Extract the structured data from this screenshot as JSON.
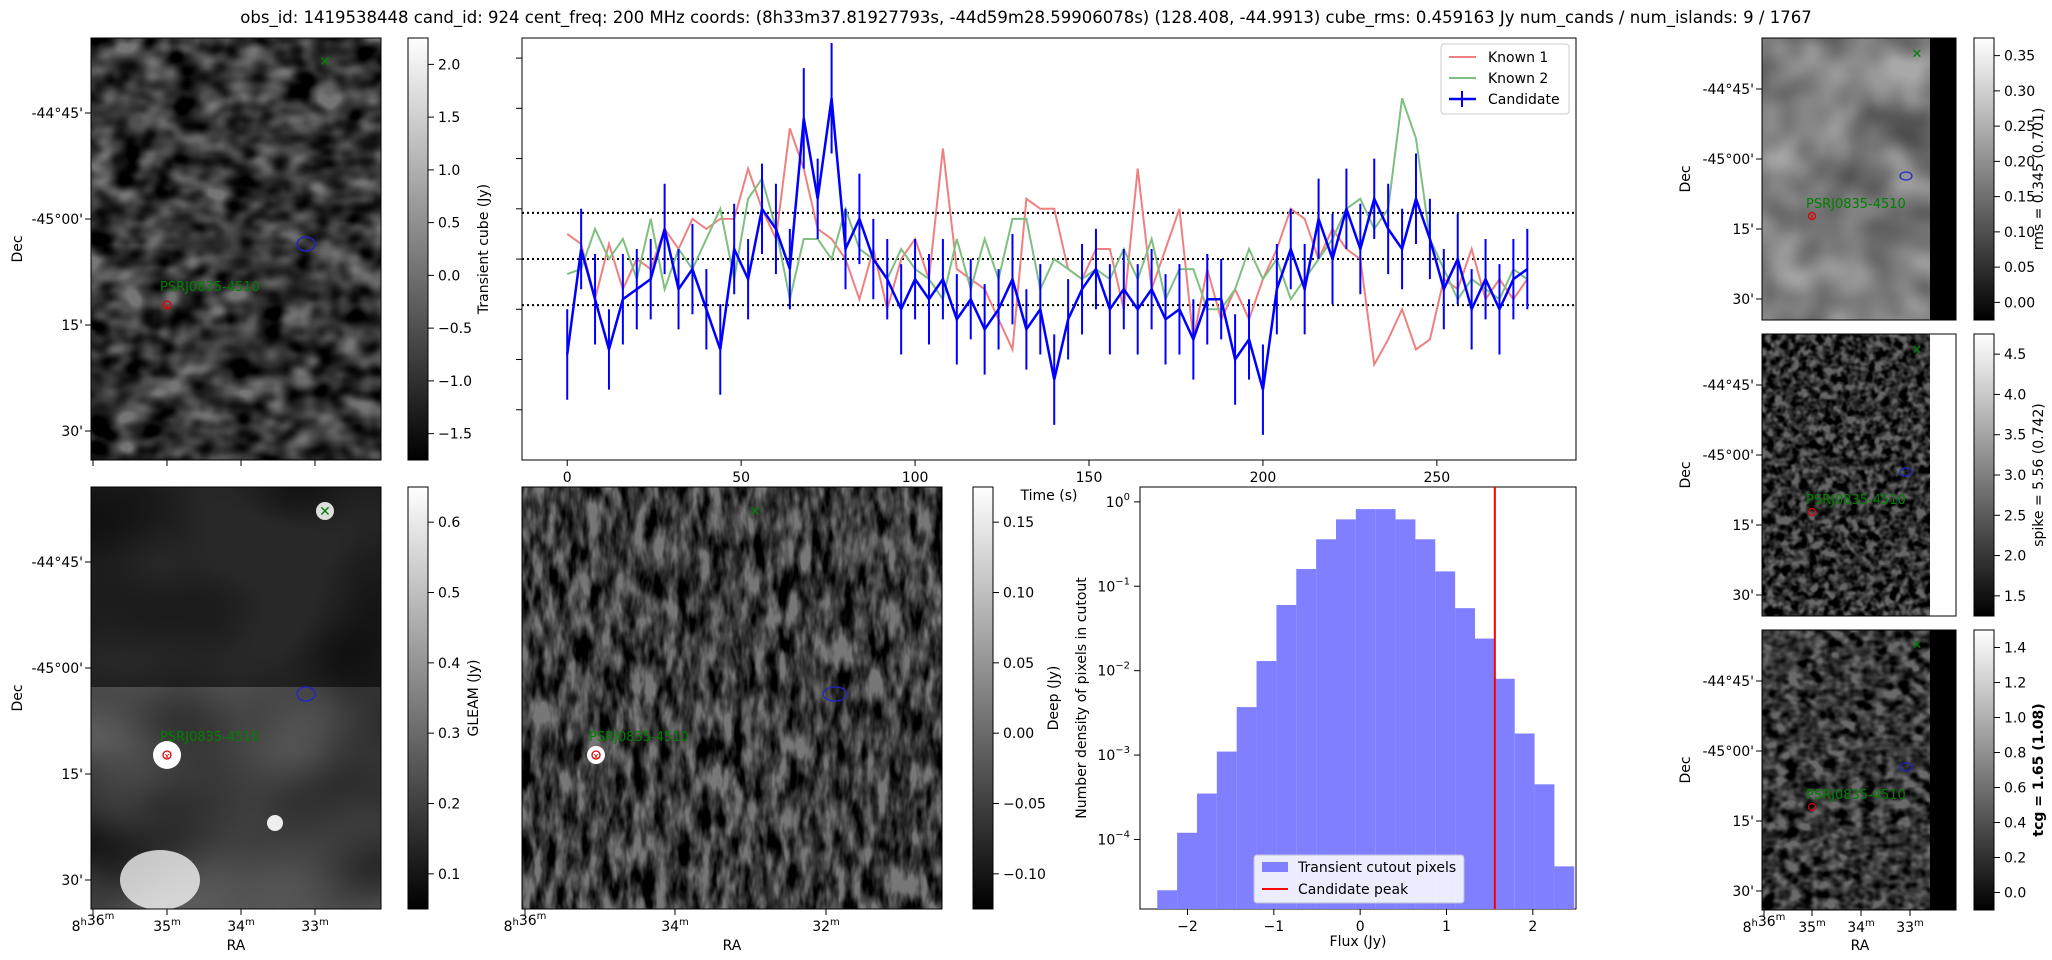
{
  "figure": {
    "title": "obs_id: 1419538448 cand_id: 924 cent_freq: 200 MHz coords: (8h33m37.81927793s, -44d59m28.59906078s) (128.408, -44.9913) cube_rms: 0.459163 Jy num_cands / num_islands: 9 / 1767"
  },
  "sky": {
    "dec_ticks": [
      "-44°45'",
      "-45°00'",
      "15'",
      "30'"
    ],
    "ra_ticks_left": [
      "8h36m",
      "35m",
      "34m",
      "33m"
    ],
    "ra_ticks_middle": [
      "8h36m",
      "34m",
      "32m"
    ],
    "ra_ticks_right": [
      "8h36m",
      "35m",
      "34m",
      "33m"
    ],
    "ra_label": "RA",
    "dec_label": "Dec",
    "source_label": "PSRJ0835-4510"
  },
  "panels": {
    "transient": {
      "colorbar_label": "Transient cube (Jy)",
      "colorbar_ticks": [
        "2.0",
        "1.5",
        "1.0",
        "0.5",
        "0.0",
        "−0.5",
        "−1.0",
        "−1.5"
      ]
    },
    "gleam": {
      "colorbar_label": "GLEAM (Jy)",
      "colorbar_ticks": [
        "0.6",
        "0.5",
        "0.4",
        "0.3",
        "0.2",
        "0.1"
      ]
    },
    "deep": {
      "colorbar_label": "Deep (Jy)",
      "colorbar_ticks": [
        "0.15",
        "0.10",
        "0.05",
        "0.00",
        "−0.05",
        "−0.10"
      ]
    },
    "rms": {
      "colorbar_label": "rms = 0.345 (0.701)",
      "colorbar_ticks": [
        "0.35",
        "0.30",
        "0.25",
        "0.20",
        "0.15",
        "0.10",
        "0.05",
        "0.00"
      ]
    },
    "spike": {
      "colorbar_label": "spike = 5.56 (0.742)",
      "colorbar_ticks": [
        "4.5",
        "4.0",
        "3.5",
        "3.0",
        "2.5",
        "2.0",
        "1.5"
      ]
    },
    "tcg": {
      "colorbar_label": "tcg = 1.65 (1.08)",
      "colorbar_ticks": [
        "1.4",
        "1.2",
        "1.0",
        "0.8",
        "0.6",
        "0.4",
        "0.2",
        "0.0"
      ]
    }
  },
  "colors": {
    "candidate": "#0000ff",
    "known1": "#f08080",
    "known2": "#7fbf7f",
    "hist": "#7f7fff",
    "peak": "#ff0000",
    "source_text": "#008000"
  },
  "chart_data": [
    {
      "type": "line",
      "xlabel": "Time (s)",
      "ylabel": "",
      "xlim": [
        -13,
        290
      ],
      "ylim": [
        -2.0,
        2.2
      ],
      "x_ticks": [
        "0",
        "50",
        "100",
        "150",
        "200",
        "250"
      ],
      "hlines": [
        0.459163,
        0.0,
        -0.459163
      ],
      "legend_position": "top-right",
      "x": [
        0,
        4,
        8,
        12,
        16,
        20,
        24,
        28,
        32,
        36,
        40,
        44,
        48,
        52,
        56,
        60,
        64,
        68,
        72,
        76,
        80,
        84,
        88,
        92,
        96,
        100,
        104,
        108,
        112,
        116,
        120,
        124,
        128,
        132,
        136,
        140,
        144,
        148,
        152,
        156,
        160,
        164,
        168,
        172,
        176,
        180,
        184,
        188,
        192,
        196,
        200,
        204,
        208,
        212,
        216,
        220,
        224,
        228,
        232,
        236,
        240,
        244,
        248,
        252,
        256,
        260,
        264,
        268,
        272,
        276
      ],
      "series": [
        {
          "name": "Candidate",
          "values": [
            -0.95,
            0.1,
            -0.4,
            -0.9,
            -0.4,
            -0.3,
            -0.2,
            0.3,
            -0.3,
            -0.1,
            -0.5,
            -0.9,
            0.1,
            -0.2,
            0.5,
            0.3,
            -0.1,
            1.4,
            0.6,
            1.6,
            0.1,
            0.4,
            0.0,
            -0.2,
            -0.5,
            -0.2,
            -0.4,
            -0.2,
            -0.6,
            -0.4,
            -0.7,
            -0.5,
            -0.2,
            -0.7,
            -0.5,
            -1.2,
            -0.6,
            -0.3,
            -0.1,
            -0.5,
            -0.3,
            -0.5,
            -0.3,
            -0.6,
            -0.5,
            -0.8,
            -0.4,
            -0.4,
            -1.0,
            -0.8,
            -1.3,
            -0.3,
            0.1,
            -0.3,
            0.4,
            0.0,
            0.5,
            0.1,
            0.6,
            0.3,
            0.1,
            0.6,
            0.2,
            -0.3,
            0.0,
            -0.5,
            -0.2,
            -0.5,
            -0.2,
            -0.1
          ],
          "errors": [
            0.45,
            0.4,
            0.45,
            0.4,
            0.45,
            0.4,
            0.4,
            0.45,
            0.4,
            0.45,
            0.4,
            0.45,
            0.45,
            0.4,
            0.45,
            0.45,
            0.4,
            0.5,
            0.4,
            0.55,
            0.4,
            0.45,
            0.4,
            0.4,
            0.45,
            0.4,
            0.45,
            0.4,
            0.45,
            0.4,
            0.45,
            0.4,
            0.45,
            0.4,
            0.45,
            0.45,
            0.4,
            0.45,
            0.4,
            0.45,
            0.4,
            0.45,
            0.4,
            0.45,
            0.45,
            0.4,
            0.45,
            0.4,
            0.45,
            0.4,
            0.45,
            0.45,
            0.4,
            0.45,
            0.4,
            0.45,
            0.4,
            0.45,
            0.4,
            0.45,
            0.4,
            0.45,
            0.4,
            0.4,
            0.45,
            0.4,
            0.4,
            0.45,
            0.4,
            0.4
          ]
        },
        {
          "name": "Known 1",
          "values": [
            0.25,
            0.15,
            -0.4,
            0.15,
            -0.3,
            0.0,
            -0.1,
            0.3,
            0.1,
            0.4,
            0.3,
            0.4,
            0.4,
            0.9,
            0.5,
            0.2,
            1.3,
            0.9,
            0.3,
            0.2,
            0.0,
            -0.4,
            0.1,
            -0.5,
            0.0,
            0.2,
            -0.2,
            1.1,
            -0.1,
            -0.2,
            -0.3,
            -0.6,
            -0.9,
            0.6,
            0.5,
            0.5,
            -0.1,
            -0.2,
            0.1,
            0.1,
            -0.5,
            0.9,
            -0.3,
            0.1,
            0.5,
            -0.8,
            -0.1,
            -0.6,
            -0.3,
            -0.6,
            -0.2,
            0.1,
            0.5,
            0.4,
            0.0,
            0.3,
            0.1,
            0.0,
            -1.05,
            -0.8,
            -0.5,
            -0.9,
            -0.8,
            -0.2,
            -0.3,
            0.1,
            -0.4,
            -0.2,
            -0.4,
            -0.2
          ]
        },
        {
          "name": "Known 2",
          "values": [
            -0.15,
            -0.1,
            0.3,
            0.0,
            0.2,
            -0.2,
            0.4,
            -0.3,
            0.1,
            -0.1,
            0.2,
            0.5,
            -0.2,
            0.6,
            0.8,
            0.3,
            -0.4,
            0.2,
            0.2,
            0.0,
            0.5,
            0.1,
            0.0,
            -0.2,
            0.1,
            -0.1,
            -0.2,
            -0.4,
            0.2,
            -0.3,
            0.2,
            -0.2,
            0.4,
            0.4,
            -0.3,
            0.0,
            -0.1,
            -0.2,
            -0.1,
            -0.2,
            0.1,
            -0.2,
            0.2,
            -0.4,
            -0.1,
            -0.1,
            -0.5,
            -0.5,
            -0.3,
            0.1,
            -0.2,
            0.0,
            -0.4,
            -0.2,
            0.0,
            0.2,
            0.5,
            0.6,
            0.3,
            0.5,
            1.6,
            1.2,
            0.2,
            -0.1,
            -0.4,
            -0.2,
            -0.3,
            -0.4,
            -0.1,
            -0.2
          ]
        }
      ]
    },
    {
      "type": "bar",
      "xlabel": "Flux (Jy)",
      "ylabel": "Number density of pixels in cutout",
      "yscale": "log",
      "xlim": [
        -2.55,
        2.5
      ],
      "ylim": [
        1.5e-05,
        1.5
      ],
      "x_ticks": [
        "−2",
        "−1",
        "0",
        "1",
        "2"
      ],
      "y_ticks": [
        "10^0",
        "10^-1",
        "10^-2",
        "10^-3",
        "10^-4"
      ],
      "legend_position": "bottom-center",
      "bin_edges": [
        -2.35,
        -2.12,
        -1.89,
        -1.66,
        -1.43,
        -1.2,
        -0.97,
        -0.74,
        -0.51,
        -0.28,
        -0.05,
        0.18,
        0.41,
        0.64,
        0.87,
        1.1,
        1.33,
        1.56,
        1.79,
        2.02,
        2.25
      ],
      "series": [
        {
          "name": "Transient cutout pixels",
          "values": [
            2.5e-05,
            0.00012,
            0.00035,
            0.0011,
            0.0037,
            0.013,
            0.06,
            0.16,
            0.36,
            0.62,
            0.82,
            0.82,
            0.62,
            0.36,
            0.15,
            0.055,
            0.024,
            0.008,
            0.0018,
            0.00045,
            4.8e-05
          ]
        },
        {
          "name": "Candidate peak",
          "values": [
            1.56
          ]
        }
      ]
    }
  ]
}
